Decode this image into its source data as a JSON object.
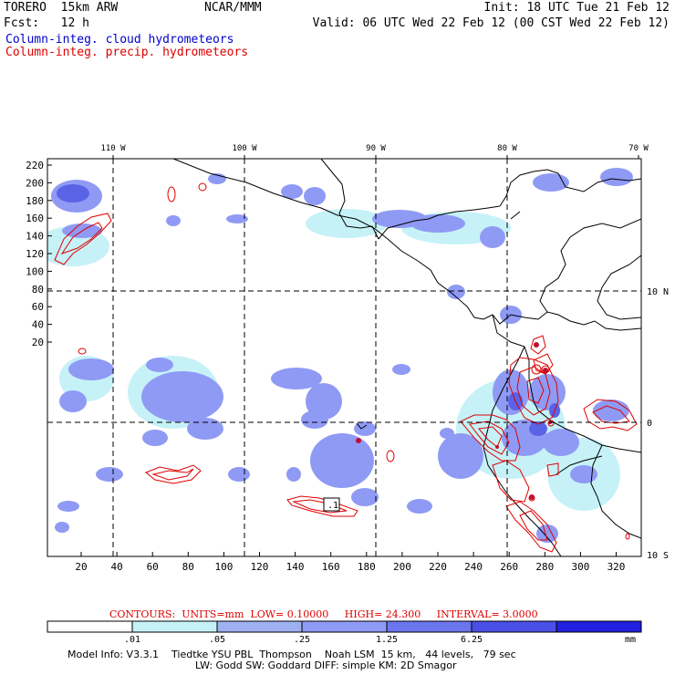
{
  "header": {
    "model": "TORERO",
    "resolution": "15km ARW",
    "center": "NCAR/MMM",
    "fcst_label": "Fcst:",
    "fcst_value": "12 h",
    "init": "Init: 18 UTC Tue 21 Feb 12",
    "valid": "Valid: 06 UTC Wed 22 Feb 12 (00 CST Wed 22 Feb 12)"
  },
  "legend": {
    "cloud": "Column-integ. cloud hydrometeors",
    "precip": "Column-integ. precip. hydrometeors"
  },
  "map": {
    "top_lon_labels": [
      "110 W",
      "100 W",
      "90 W",
      "80 W",
      "70 W"
    ],
    "right_lat_labels": [
      "10 N",
      "0",
      "10 S"
    ],
    "left_y_ticks": [
      "220",
      "200",
      "180",
      "160",
      "140",
      "120",
      "100",
      "80",
      "60",
      "40",
      "20"
    ],
    "bottom_x_ticks": [
      "20",
      "40",
      "60",
      "80",
      "100",
      "120",
      "140",
      "160",
      "180",
      "200",
      "220",
      "240",
      "260",
      "280",
      "300",
      "320"
    ],
    "box_label": ".1",
    "cloud_color": "#8f9af5",
    "cloud_light_color": "#c6f2f7",
    "cloud_dark_color": "#5a63e6",
    "precip_color": "#e00000",
    "grid_color": "#000000"
  },
  "contours": {
    "label": "CONTOURS:",
    "units": "UNITS=mm",
    "low": "LOW= 0.10000",
    "high": "HIGH= 24.300",
    "interval": "INTERVAL= 3.0000"
  },
  "colorbar": {
    "labels": [
      ".01",
      ".05",
      ".25",
      "1.25",
      "6.25"
    ],
    "unit": "mm",
    "colors": [
      "#ffffff",
      "#c6f2f7",
      "#9fb0f2",
      "#8f9af5",
      "#6b75ee",
      "#4a50e6",
      "#2020e0"
    ]
  },
  "model_info": {
    "line1": "Model Info: V3.3.1    Tiedtke YSU PBL  Thompson    Noah LSM  15 km,   44 levels,   79 sec",
    "line2": "LW: Godd SW: Goddard DIFF: simple KM: 2D Smagor"
  }
}
